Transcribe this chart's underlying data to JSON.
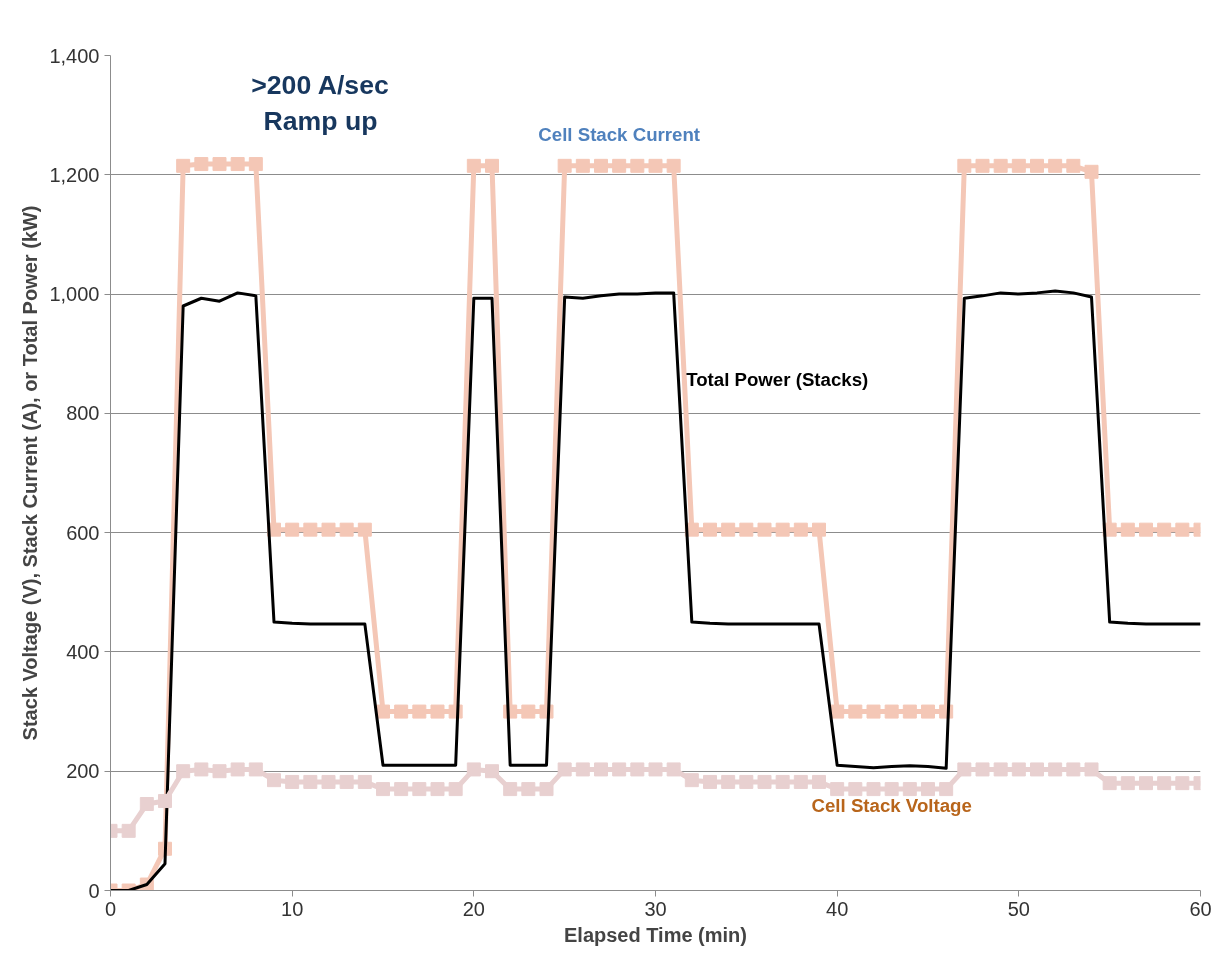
{
  "chart_data": {
    "type": "line",
    "xlabel": "Elapsed Time (min)",
    "ylabel": "Stack Voltage (V), Stack Current (A), or Total Power (kW)",
    "x": [
      0,
      1,
      2,
      3,
      4,
      5,
      6,
      7,
      8,
      9,
      10,
      11,
      12,
      13,
      14,
      15,
      16,
      17,
      18,
      19,
      20,
      21,
      22,
      23,
      24,
      25,
      26,
      27,
      28,
      29,
      30,
      31,
      32,
      33,
      34,
      35,
      36,
      37,
      38,
      39,
      40,
      41,
      42,
      43,
      44,
      45,
      46,
      47,
      48,
      49,
      50,
      51,
      52,
      53,
      54,
      55,
      56,
      57,
      58,
      59,
      60
    ],
    "xlim": [
      0,
      60
    ],
    "xticks": [
      0,
      10,
      20,
      30,
      40,
      50,
      60
    ],
    "ylim": [
      0,
      1400
    ],
    "yticks": [
      0,
      200,
      400,
      600,
      800,
      {
        "value": 1000,
        "label": "1,000"
      },
      {
        "value": 1200,
        "label": "1,200"
      },
      {
        "value": 1400,
        "label": "1,400"
      }
    ],
    "grid": "y",
    "line_style": "solid",
    "series": [
      {
        "name": "Cell Stack Current",
        "color": "#f4c7b6",
        "marker": "square",
        "values": [
          0,
          0,
          10,
          70,
          1215,
          1218,
          1218,
          1218,
          1218,
          605,
          605,
          605,
          605,
          605,
          605,
          300,
          300,
          300,
          300,
          300,
          1215,
          1215,
          300,
          300,
          300,
          1215,
          1215,
          1215,
          1215,
          1215,
          1215,
          1215,
          605,
          605,
          605,
          605,
          605,
          605,
          605,
          605,
          300,
          300,
          300,
          300,
          300,
          300,
          300,
          1215,
          1215,
          1215,
          1215,
          1215,
          1215,
          1215,
          1205,
          605,
          605,
          605,
          605,
          605,
          605
        ]
      },
      {
        "name": "Total Power (Stacks)",
        "color": "#000000",
        "marker": "none",
        "values": [
          0,
          0,
          10,
          45,
          980,
          993,
          988,
          1002,
          997,
          450,
          448,
          447,
          447,
          447,
          447,
          210,
          210,
          210,
          210,
          210,
          993,
          993,
          210,
          210,
          210,
          995,
          993,
          997,
          1000,
          1000,
          1002,
          1002,
          450,
          448,
          447,
          447,
          447,
          447,
          447,
          447,
          210,
          208,
          206,
          208,
          209,
          208,
          205,
          993,
          997,
          1002,
          1000,
          1002,
          1005,
          1002,
          995,
          450,
          448,
          447,
          447,
          447,
          447
        ]
      },
      {
        "name": "Cell Stack Voltage",
        "color": "#e8d0d0",
        "marker": "square",
        "values": [
          100,
          100,
          145,
          150,
          200,
          203,
          200,
          203,
          203,
          185,
          182,
          182,
          182,
          182,
          182,
          170,
          170,
          170,
          170,
          170,
          203,
          200,
          170,
          170,
          170,
          203,
          203,
          203,
          203,
          203,
          203,
          203,
          185,
          182,
          182,
          182,
          182,
          182,
          182,
          182,
          170,
          170,
          170,
          170,
          170,
          170,
          170,
          203,
          203,
          203,
          203,
          203,
          203,
          203,
          203,
          180,
          180,
          180,
          180,
          180,
          180
        ]
      }
    ],
    "annotations": [
      ">200 A/sec\nRamp up"
    ]
  }
}
